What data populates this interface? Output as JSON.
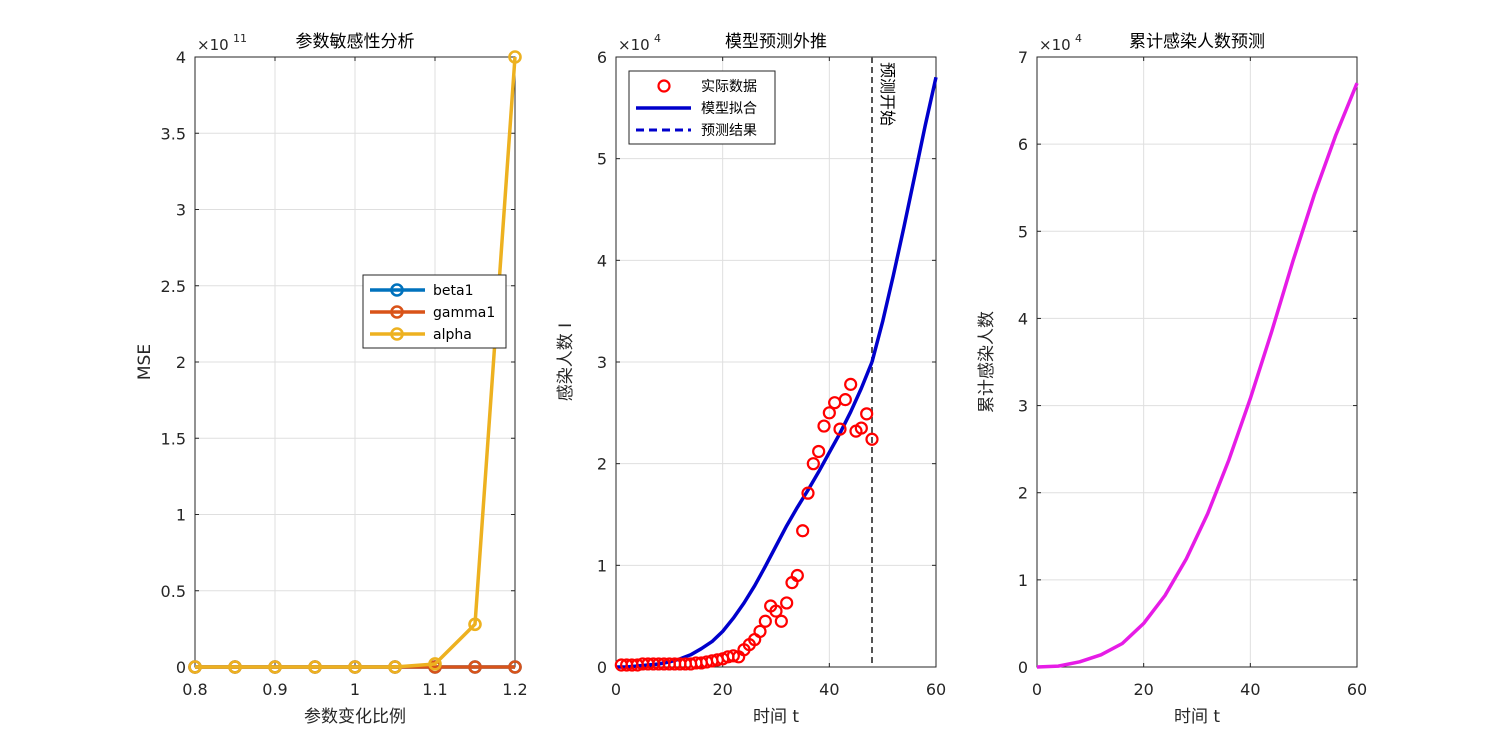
{
  "chart_data": [
    {
      "type": "line",
      "title": "参数敏感性分析",
      "xlabel": "参数变化比例",
      "ylabel": "MSE",
      "xlim": [
        0.8,
        1.2
      ],
      "ylim": [
        0,
        4
      ],
      "y_exponent": "11",
      "xticks": [
        0.8,
        0.9,
        1,
        1.1,
        1.2
      ],
      "xtick_labels": [
        "0.8",
        "0.9",
        "1",
        "1.1",
        "1.2"
      ],
      "yticks": [
        0,
        0.5,
        1,
        1.5,
        2,
        2.5,
        3,
        3.5,
        4
      ],
      "ytick_labels": [
        "0",
        "0.5",
        "1",
        "1.5",
        "2",
        "2.5",
        "3",
        "3.5",
        "4"
      ],
      "grid": true,
      "legend_position": "middle-right",
      "x": [
        0.8,
        0.85,
        0.9,
        0.95,
        1.0,
        1.05,
        1.1,
        1.15,
        1.2
      ],
      "series": [
        {
          "name": "beta1",
          "color": "#0072BD",
          "values": [
            0,
            0,
            0,
            0,
            0,
            0,
            0,
            0,
            0
          ]
        },
        {
          "name": "gamma1",
          "color": "#D95319",
          "values": [
            0,
            0,
            0,
            0,
            0,
            0,
            0,
            0,
            0
          ]
        },
        {
          "name": "alpha",
          "color": "#EDB120",
          "values": [
            0,
            0,
            0,
            0,
            0,
            0,
            0.02,
            0.28,
            4.0
          ]
        }
      ]
    },
    {
      "type": "line",
      "title": "模型预测外推",
      "xlabel": "时间 t",
      "ylabel": "感染人数 I",
      "xlim": [
        0,
        60
      ],
      "ylim": [
        0,
        6
      ],
      "y_exponent": "4",
      "xticks": [
        0,
        20,
        40,
        60
      ],
      "xtick_labels": [
        "0",
        "20",
        "40",
        "60"
      ],
      "yticks": [
        0,
        1,
        2,
        3,
        4,
        5,
        6
      ],
      "ytick_labels": [
        "0",
        "1",
        "2",
        "3",
        "4",
        "5",
        "6"
      ],
      "grid": true,
      "legend_position": "top-left",
      "legend": [
        {
          "name": "实际数据",
          "style": "circle",
          "color": "#FF0000"
        },
        {
          "name": "模型拟合",
          "style": "solid",
          "color": "#0000CC"
        },
        {
          "name": "预测结果",
          "style": "dashed",
          "color": "#0000CC"
        }
      ],
      "vline": {
        "x": 48,
        "label": "预测开始",
        "color": "#555555"
      },
      "observed": {
        "x": [
          1,
          2,
          3,
          4,
          5,
          6,
          7,
          8,
          9,
          10,
          11,
          12,
          13,
          14,
          15,
          16,
          17,
          18,
          19,
          20,
          21,
          22,
          23,
          24,
          25,
          26,
          27,
          28,
          29,
          30,
          31,
          32,
          33,
          34,
          35,
          36,
          37,
          38,
          39,
          40,
          41,
          42,
          43,
          44,
          45,
          46,
          47,
          48
        ],
        "y": [
          0.02,
          0.02,
          0.02,
          0.02,
          0.03,
          0.03,
          0.03,
          0.03,
          0.03,
          0.03,
          0.03,
          0.03,
          0.03,
          0.03,
          0.04,
          0.04,
          0.05,
          0.06,
          0.07,
          0.08,
          0.1,
          0.11,
          0.1,
          0.17,
          0.22,
          0.27,
          0.35,
          0.45,
          0.6,
          0.55,
          0.45,
          0.63,
          0.83,
          0.9,
          1.34,
          1.71,
          2.0,
          2.12,
          2.37,
          2.5,
          2.6,
          2.34,
          2.63,
          2.78,
          2.32,
          2.35,
          2.49,
          2.24
        ]
      },
      "model_fit": {
        "x": [
          0,
          2,
          4,
          6,
          8,
          10,
          12,
          14,
          16,
          18,
          20,
          22,
          24,
          26,
          28,
          30,
          32,
          34,
          36,
          38,
          40,
          42,
          44,
          46,
          48
        ],
        "y": [
          0.0,
          0.0,
          0.01,
          0.02,
          0.03,
          0.05,
          0.08,
          0.12,
          0.18,
          0.25,
          0.35,
          0.48,
          0.63,
          0.8,
          0.99,
          1.19,
          1.39,
          1.57,
          1.74,
          1.92,
          2.11,
          2.3,
          2.51,
          2.74,
          3.0
        ]
      },
      "prediction": {
        "x": [
          48,
          50,
          52,
          54,
          56,
          58,
          60
        ],
        "y": [
          3.0,
          3.4,
          3.85,
          4.33,
          4.83,
          5.33,
          5.8
        ]
      }
    },
    {
      "type": "line",
      "title": "累计感染人数预测",
      "xlabel": "时间 t",
      "ylabel": "累计感染人数",
      "xlim": [
        0,
        60
      ],
      "ylim": [
        0,
        7
      ],
      "y_exponent": "4",
      "xticks": [
        0,
        20,
        40,
        60
      ],
      "xtick_labels": [
        "0",
        "20",
        "40",
        "60"
      ],
      "yticks": [
        0,
        1,
        2,
        3,
        4,
        5,
        6,
        7
      ],
      "ytick_labels": [
        "0",
        "1",
        "2",
        "3",
        "4",
        "5",
        "6",
        "7"
      ],
      "grid": true,
      "series": [
        {
          "color": "#E61CE6",
          "x": [
            0,
            4,
            8,
            12,
            16,
            20,
            24,
            28,
            32,
            36,
            40,
            44,
            48,
            52,
            56,
            60
          ],
          "values": [
            0.0,
            0.01,
            0.06,
            0.14,
            0.27,
            0.5,
            0.82,
            1.24,
            1.76,
            2.38,
            3.08,
            3.85,
            4.66,
            5.42,
            6.1,
            6.7
          ]
        }
      ]
    }
  ]
}
